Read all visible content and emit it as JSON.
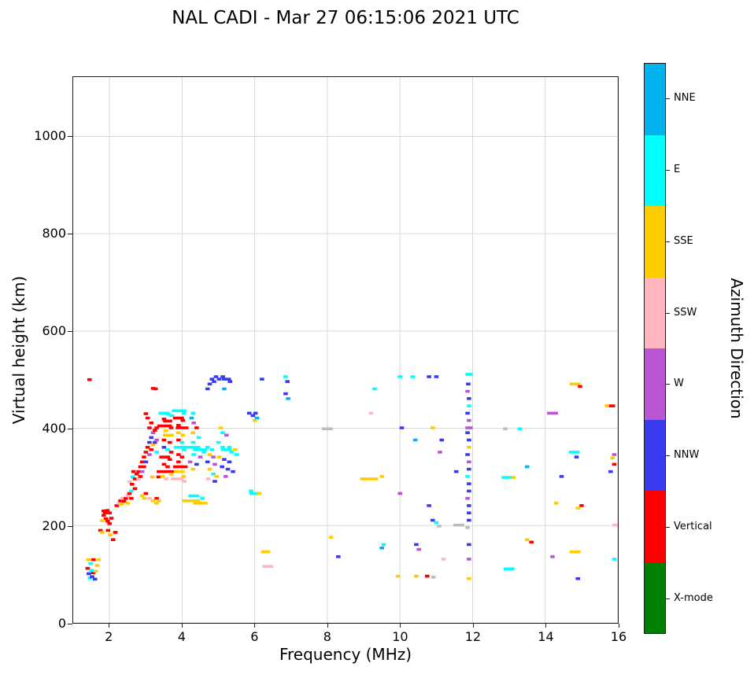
{
  "chart_data": {
    "type": "scatter",
    "title": "NAL CADI - Mar 27 06:15:06 2021 UTC",
    "xlabel": "Frequency (MHz)",
    "ylabel": "Virtual height (km)",
    "xlim": [
      1,
      16
    ],
    "ylim": [
      0,
      1122
    ],
    "xticks": [
      2,
      4,
      6,
      8,
      10,
      12,
      14,
      16
    ],
    "yticks": [
      0,
      200,
      400,
      600,
      800,
      1000
    ],
    "grid": true,
    "grid_color": "#d9d9d9",
    "colorbar": {
      "label": "Azimuth Direction",
      "categories": [
        {
          "label": "NNE",
          "color": "#00b2ee"
        },
        {
          "label": "E",
          "color": "#00ffff"
        },
        {
          "label": "SSE",
          "color": "#ffcc00"
        },
        {
          "label": "SSW",
          "color": "#ffb6c1"
        },
        {
          "label": "W",
          "color": "#ba55d3"
        },
        {
          "label": "NNW",
          "color": "#3a3af0"
        },
        {
          "label": "Vertical",
          "color": "#ff0000"
        },
        {
          "label": "X-mode",
          "color": "#008000"
        }
      ]
    },
    "colors": {
      "NNE": "#00b2ee",
      "E": "#00ffff",
      "SSE": "#ffcc00",
      "SSW": "#ffb6c1",
      "W": "#ba55d3",
      "NNW": "#3a3af0",
      "V": "#ff0000",
      "X": "#008000",
      "G": "#bdbdbd"
    },
    "point_format": [
      "freq_MHz",
      "height_km",
      "azimuth_key",
      "dash_width_MHz_optional"
    ],
    "points": [
      [
        1.45,
        500,
        "V"
      ],
      [
        1.42,
        130,
        "SSE"
      ],
      [
        1.48,
        122,
        "E"
      ],
      [
        1.4,
        112,
        "V"
      ],
      [
        1.43,
        101,
        "NNW"
      ],
      [
        1.46,
        92,
        "E"
      ],
      [
        1.52,
        95,
        "NNW"
      ],
      [
        1.55,
        103,
        "V"
      ],
      [
        1.6,
        90,
        "NNW"
      ],
      [
        1.62,
        106,
        "SSE"
      ],
      [
        1.66,
        118,
        "SSE"
      ],
      [
        1.7,
        130,
        "SSE"
      ],
      [
        1.56,
        130,
        "V"
      ],
      [
        1.5,
        108,
        "E"
      ],
      [
        1.75,
        190,
        "V"
      ],
      [
        1.8,
        186,
        "SSE"
      ],
      [
        1.84,
        230,
        "V"
      ],
      [
        1.84,
        221,
        "V"
      ],
      [
        1.88,
        226,
        "V"
      ],
      [
        1.9,
        214,
        "V"
      ],
      [
        1.94,
        231,
        "V"
      ],
      [
        1.95,
        209,
        "V"
      ],
      [
        2.0,
        226,
        "V"
      ],
      [
        2.0,
        204,
        "V"
      ],
      [
        2.05,
        215,
        "V"
      ],
      [
        1.96,
        190,
        "V"
      ],
      [
        2.02,
        181,
        "SSE"
      ],
      [
        2.1,
        171,
        "V"
      ],
      [
        2.16,
        186,
        "V"
      ],
      [
        1.8,
        210,
        "SSE"
      ],
      [
        2.2,
        241,
        "V"
      ],
      [
        2.26,
        246,
        "SSW"
      ],
      [
        2.3,
        251,
        "V"
      ],
      [
        2.34,
        244,
        "SSE"
      ],
      [
        2.36,
        256,
        "SSW"
      ],
      [
        2.4,
        250,
        "V"
      ],
      [
        2.45,
        256,
        "V"
      ],
      [
        2.5,
        261,
        "SSW"
      ],
      [
        2.5,
        246,
        "SSE"
      ],
      [
        2.55,
        266,
        "V"
      ],
      [
        2.6,
        271,
        "E"
      ],
      [
        2.6,
        256,
        "V"
      ],
      [
        2.64,
        300,
        "E"
      ],
      [
        2.66,
        311,
        "V"
      ],
      [
        2.7,
        296,
        "V"
      ],
      [
        2.7,
        276,
        "V"
      ],
      [
        2.75,
        306,
        "V"
      ],
      [
        2.56,
        290,
        "SSW"
      ],
      [
        2.62,
        285,
        "V"
      ],
      [
        2.8,
        311,
        "V"
      ],
      [
        2.8,
        296,
        "SSW"
      ],
      [
        2.85,
        321,
        "V"
      ],
      [
        2.85,
        301,
        "V"
      ],
      [
        2.9,
        331,
        "V"
      ],
      [
        2.9,
        311,
        "W"
      ],
      [
        2.95,
        341,
        "V"
      ],
      [
        2.95,
        321,
        "V"
      ],
      [
        3.0,
        351,
        "V"
      ],
      [
        3.0,
        331,
        "NNW"
      ],
      [
        3.0,
        430,
        "V"
      ],
      [
        3.05,
        421,
        "V"
      ],
      [
        3.05,
        361,
        "V"
      ],
      [
        3.1,
        401,
        "V"
      ],
      [
        3.1,
        371,
        "NNW"
      ],
      [
        3.1,
        346,
        "W"
      ],
      [
        3.15,
        411,
        "V"
      ],
      [
        3.15,
        381,
        "NNW"
      ],
      [
        3.15,
        356,
        "V"
      ],
      [
        3.2,
        482,
        "V"
      ],
      [
        3.27,
        481,
        "V"
      ],
      [
        3.2,
        391,
        "W"
      ],
      [
        3.2,
        366,
        "SSE"
      ],
      [
        3.25,
        396,
        "V"
      ],
      [
        3.25,
        371,
        "NNW"
      ],
      [
        3.3,
        401,
        "V"
      ],
      [
        3.3,
        376,
        "W"
      ],
      [
        3.3,
        351,
        "E"
      ],
      [
        2.9,
        261,
        "SSE"
      ],
      [
        2.96,
        256,
        "SSE"
      ],
      [
        3.0,
        266,
        "V"
      ],
      [
        3.1,
        256,
        "SSW"
      ],
      [
        3.2,
        251,
        "SSE"
      ],
      [
        3.3,
        246,
        "SSE"
      ],
      [
        3.3,
        256,
        "V"
      ],
      [
        3.36,
        251,
        "SSE"
      ],
      [
        3.35,
        300,
        "V"
      ],
      [
        3.18,
        300,
        "SSE"
      ],
      [
        3.5,
        431,
        "E",
        0.3
      ],
      [
        3.62,
        429,
        "E"
      ],
      [
        3.72,
        426,
        "E"
      ],
      [
        3.5,
        419,
        "V"
      ],
      [
        3.6,
        415,
        "V",
        0.25
      ],
      [
        3.52,
        405,
        "V",
        0.4
      ],
      [
        3.7,
        401,
        "V"
      ],
      [
        3.55,
        395,
        "SSE"
      ],
      [
        3.62,
        386,
        "SSE",
        0.3
      ],
      [
        3.5,
        376,
        "V"
      ],
      [
        3.66,
        371,
        "V"
      ],
      [
        3.5,
        361,
        "NNW"
      ],
      [
        3.6,
        356,
        "E"
      ],
      [
        3.7,
        351,
        "V"
      ],
      [
        3.52,
        341,
        "V",
        0.3
      ],
      [
        3.66,
        336,
        "V"
      ],
      [
        3.5,
        326,
        "V"
      ],
      [
        3.6,
        321,
        "V"
      ],
      [
        3.55,
        311,
        "V",
        0.5
      ],
      [
        3.7,
        306,
        "SSE"
      ],
      [
        3.46,
        301,
        "SSE"
      ],
      [
        3.56,
        296,
        "SSW"
      ],
      [
        3.92,
        436,
        "E",
        0.4
      ],
      [
        4.05,
        431,
        "E"
      ],
      [
        3.9,
        421,
        "V",
        0.3
      ],
      [
        4.02,
        416,
        "V"
      ],
      [
        3.9,
        406,
        "V"
      ],
      [
        4.0,
        401,
        "V",
        0.35
      ],
      [
        3.9,
        391,
        "SSE"
      ],
      [
        4.02,
        386,
        "SSE"
      ],
      [
        3.9,
        376,
        "V"
      ],
      [
        4.0,
        371,
        "E"
      ],
      [
        3.92,
        361,
        "E",
        0.3
      ],
      [
        4.05,
        356,
        "E"
      ],
      [
        3.9,
        346,
        "V"
      ],
      [
        4.0,
        341,
        "V"
      ],
      [
        3.9,
        331,
        "V"
      ],
      [
        3.95,
        321,
        "V",
        0.4
      ],
      [
        3.92,
        311,
        "SSE",
        0.3
      ],
      [
        4.04,
        301,
        "SSE"
      ],
      [
        3.86,
        296,
        "SSW",
        0.35
      ],
      [
        4.06,
        291,
        "SSW"
      ],
      [
        4.3,
        431,
        "E"
      ],
      [
        4.26,
        421,
        "NNE"
      ],
      [
        4.32,
        411,
        "W"
      ],
      [
        4.4,
        401,
        "V"
      ],
      [
        4.3,
        391,
        "SSE"
      ],
      [
        4.46,
        381,
        "E"
      ],
      [
        4.3,
        371,
        "E"
      ],
      [
        4.25,
        361,
        "E",
        0.5
      ],
      [
        4.5,
        356,
        "E",
        0.4
      ],
      [
        4.32,
        346,
        "E"
      ],
      [
        4.5,
        341,
        "W"
      ],
      [
        4.22,
        331,
        "W"
      ],
      [
        4.4,
        326,
        "NNW"
      ],
      [
        4.3,
        316,
        "SSE"
      ],
      [
        4.25,
        251,
        "SSE",
        0.5
      ],
      [
        4.5,
        246,
        "SSE",
        0.4
      ],
      [
        4.32,
        261,
        "E",
        0.3
      ],
      [
        4.56,
        256,
        "E"
      ],
      [
        4.6,
        351,
        "E"
      ],
      [
        4.7,
        481,
        "NNW"
      ],
      [
        4.76,
        491,
        "NNW"
      ],
      [
        4.82,
        501,
        "NNW"
      ],
      [
        4.88,
        496,
        "NNW"
      ],
      [
        4.93,
        506,
        "NNW"
      ],
      [
        4.7,
        361,
        "E"
      ],
      [
        4.82,
        356,
        "E"
      ],
      [
        4.76,
        346,
        "SSE"
      ],
      [
        4.86,
        341,
        "W"
      ],
      [
        4.7,
        331,
        "NNW"
      ],
      [
        4.9,
        326,
        "W"
      ],
      [
        4.76,
        316,
        "SSE"
      ],
      [
        4.86,
        306,
        "E"
      ],
      [
        4.95,
        301,
        "SSE"
      ],
      [
        4.72,
        296,
        "SSW"
      ],
      [
        4.9,
        291,
        "NNW"
      ],
      [
        5.02,
        501,
        "NNW"
      ],
      [
        5.12,
        506,
        "NNW"
      ],
      [
        5.22,
        501,
        "NNW",
        0.25
      ],
      [
        5.32,
        496,
        "NNW"
      ],
      [
        5.16,
        481,
        "NNE"
      ],
      [
        5.06,
        401,
        "SSE"
      ],
      [
        5.12,
        391,
        "E"
      ],
      [
        5.22,
        386,
        "W"
      ],
      [
        5.0,
        371,
        "E"
      ],
      [
        5.12,
        361,
        "E"
      ],
      [
        5.22,
        356,
        "E",
        0.3
      ],
      [
        5.36,
        351,
        "E"
      ],
      [
        5.02,
        341,
        "SSE"
      ],
      [
        5.16,
        336,
        "NNW"
      ],
      [
        5.3,
        331,
        "NNW"
      ],
      [
        5.1,
        321,
        "NNW"
      ],
      [
        5.26,
        316,
        "NNW"
      ],
      [
        5.4,
        311,
        "NNW"
      ],
      [
        5.2,
        301,
        "W"
      ],
      [
        5.46,
        356,
        "SSE"
      ],
      [
        5.5,
        346,
        "E"
      ],
      [
        5.3,
        361,
        "E"
      ],
      [
        5.85,
        431,
        "NNW"
      ],
      [
        5.95,
        426,
        "NNW"
      ],
      [
        6.02,
        431,
        "NNW"
      ],
      [
        6.06,
        421,
        "NNE"
      ],
      [
        6.0,
        416,
        "SSE"
      ],
      [
        5.9,
        271,
        "E"
      ],
      [
        6.0,
        266,
        "E",
        0.3
      ],
      [
        6.12,
        266,
        "SSE"
      ],
      [
        6.2,
        501,
        "NNW"
      ],
      [
        6.3,
        146,
        "SSE",
        0.25
      ],
      [
        6.36,
        116,
        "SSW",
        0.3
      ],
      [
        6.85,
        506,
        "E"
      ],
      [
        6.9,
        496,
        "NNW"
      ],
      [
        6.85,
        471,
        "NNW"
      ],
      [
        6.92,
        461,
        "NNE"
      ],
      [
        8.0,
        399,
        "G",
        0.3
      ],
      [
        8.1,
        176,
        "SSE"
      ],
      [
        8.3,
        136,
        "NNW"
      ],
      [
        9.3,
        481,
        "E"
      ],
      [
        9.2,
        431,
        "SSW"
      ],
      [
        9.15,
        296,
        "SSE",
        0.5
      ],
      [
        9.5,
        301,
        "SSE"
      ],
      [
        9.55,
        161,
        "E"
      ],
      [
        9.5,
        154,
        "NNE"
      ],
      [
        10.0,
        506,
        "E"
      ],
      [
        10.05,
        401,
        "NNW"
      ],
      [
        10.0,
        266,
        "W"
      ],
      [
        9.95,
        96,
        "SSE"
      ],
      [
        10.35,
        506,
        "E"
      ],
      [
        10.42,
        376,
        "NNE"
      ],
      [
        10.45,
        161,
        "NNW"
      ],
      [
        10.52,
        151,
        "W"
      ],
      [
        10.45,
        96,
        "SSE"
      ],
      [
        10.8,
        506,
        "NNW"
      ],
      [
        11.0,
        506,
        "NNW"
      ],
      [
        10.9,
        401,
        "SSE"
      ],
      [
        11.1,
        351,
        "W"
      ],
      [
        10.8,
        241,
        "NNW"
      ],
      [
        10.9,
        211,
        "NNW"
      ],
      [
        11.0,
        206,
        "E"
      ],
      [
        11.08,
        199,
        "G"
      ],
      [
        10.75,
        96,
        "V"
      ],
      [
        10.92,
        94,
        "G"
      ],
      [
        11.2,
        131,
        "SSW"
      ],
      [
        11.15,
        376,
        "NNW"
      ],
      [
        11.55,
        311,
        "NNW"
      ],
      [
        11.62,
        201,
        "G",
        0.3
      ],
      [
        11.9,
        511,
        "E",
        0.2
      ],
      [
        11.88,
        491,
        "NNW"
      ],
      [
        11.86,
        476,
        "W"
      ],
      [
        11.9,
        461,
        "NNW"
      ],
      [
        11.9,
        446,
        "E"
      ],
      [
        11.86,
        431,
        "NNW"
      ],
      [
        11.9,
        416,
        "W"
      ],
      [
        11.9,
        401,
        "W",
        0.2
      ],
      [
        11.86,
        391,
        "NNW"
      ],
      [
        11.9,
        376,
        "NNW"
      ],
      [
        11.9,
        361,
        "SSE"
      ],
      [
        11.86,
        346,
        "NNW"
      ],
      [
        11.9,
        331,
        "W"
      ],
      [
        11.9,
        316,
        "NNW"
      ],
      [
        11.86,
        301,
        "E"
      ],
      [
        11.9,
        286,
        "NNW"
      ],
      [
        11.9,
        271,
        "NNW"
      ],
      [
        11.86,
        256,
        "W"
      ],
      [
        11.9,
        241,
        "NNW"
      ],
      [
        11.9,
        226,
        "NNW"
      ],
      [
        11.9,
        211,
        "NNW"
      ],
      [
        11.86,
        196,
        "G"
      ],
      [
        11.9,
        161,
        "NNW"
      ],
      [
        11.9,
        131,
        "W"
      ],
      [
        11.9,
        91,
        "SSE"
      ],
      [
        12.9,
        399,
        "G"
      ],
      [
        13.3,
        399,
        "E"
      ],
      [
        12.95,
        299,
        "E",
        0.3
      ],
      [
        13.12,
        299,
        "SSE"
      ],
      [
        13.5,
        321,
        "NNE"
      ],
      [
        13.0,
        111,
        "E",
        0.3
      ],
      [
        13.5,
        171,
        "SSE"
      ],
      [
        13.62,
        166,
        "V"
      ],
      [
        14.2,
        431,
        "W",
        0.3
      ],
      [
        14.3,
        246,
        "SSE"
      ],
      [
        14.45,
        301,
        "NNW"
      ],
      [
        14.2,
        136,
        "W"
      ],
      [
        14.82,
        491,
        "SSE",
        0.3
      ],
      [
        14.96,
        486,
        "V"
      ],
      [
        14.8,
        351,
        "E",
        0.3
      ],
      [
        14.86,
        341,
        "NNW"
      ],
      [
        15.0,
        241,
        "V"
      ],
      [
        14.9,
        236,
        "SSE"
      ],
      [
        14.82,
        146,
        "SSE",
        0.3
      ],
      [
        14.9,
        91,
        "NNW"
      ],
      [
        15.8,
        446,
        "V",
        0.25
      ],
      [
        15.7,
        446,
        "SSE"
      ],
      [
        15.9,
        346,
        "W"
      ],
      [
        15.85,
        339,
        "SSE"
      ],
      [
        15.9,
        326,
        "V"
      ],
      [
        15.8,
        311,
        "NNW"
      ],
      [
        15.95,
        201,
        "SSW",
        0.2
      ],
      [
        15.9,
        131,
        "E"
      ]
    ]
  }
}
